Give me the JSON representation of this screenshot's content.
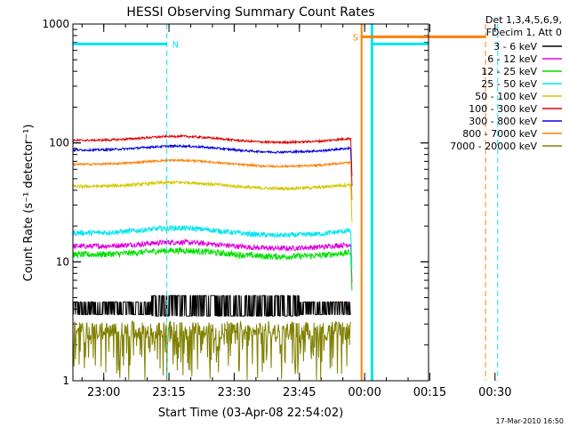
{
  "chart_data": {
    "type": "line",
    "title": "HESSI Observing Summary Count Rates",
    "xlabel": "Start Time (03-Apr-08 22:54:02)",
    "ylabel": "Count Rate (s⁻¹ detector⁻¹)",
    "ylog": true,
    "ylim": [
      1,
      1000
    ],
    "yticks": [
      "1",
      "10",
      "100",
      "1000"
    ],
    "xlim_minutes": [
      22.9,
      104.7
    ],
    "xticks": [
      {
        "label": "23:00",
        "minute": 30
      },
      {
        "label": "23:15",
        "minute": 45
      },
      {
        "label": "23:30",
        "minute": 60
      },
      {
        "label": "23:45",
        "minute": 75
      },
      {
        "label": "00:00",
        "minute": 90
      },
      {
        "label": "00:15",
        "minute": 105
      },
      {
        "label": "00:30",
        "minute": 120
      }
    ],
    "legend_header": [
      "Det 1,3,4,5,6,9,",
      "FDecim 1, Att 0"
    ],
    "series": [
      {
        "name": "3 - 6 keV",
        "color": "#000000"
      },
      {
        "name": "6 - 12 keV",
        "color": "#e000e0"
      },
      {
        "name": "12 - 25 keV",
        "color": "#00e000"
      },
      {
        "name": "25 - 50 keV",
        "color": "#00e5ee"
      },
      {
        "name": "50 - 100 keV",
        "color": "#d4c800"
      },
      {
        "name": "100 - 300 keV",
        "color": "#e00000"
      },
      {
        "name": "300 - 800 keV",
        "color": "#0000e0"
      },
      {
        "name": "800 - 7000 keV",
        "color": "#ff7f00"
      },
      {
        "name": "7000 - 20000 keV",
        "color": "#808000"
      }
    ],
    "annotations": [
      {
        "text": "N",
        "color": "#00e5ee"
      },
      {
        "text": "S",
        "color": "#ff7f00"
      }
    ],
    "footer": "17-Mar-2010 16:50"
  }
}
